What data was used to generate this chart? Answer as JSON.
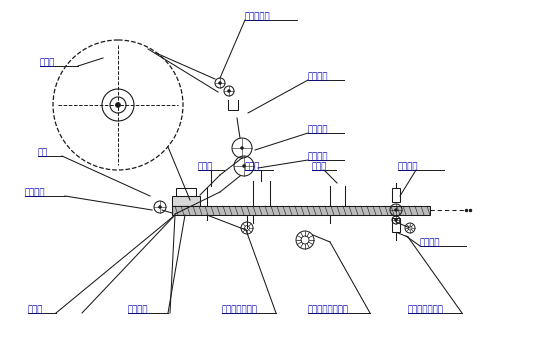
{
  "bg_color": "#ffffff",
  "line_color": "#1a1a1a",
  "label_color": "#0000bb",
  "labels": {
    "bao_mo_juan": "包膜卷",
    "bao_mo": "包膜",
    "da_ma_ji": "打码机滚筒",
    "dao_mo_dian": "导膜电眼",
    "zhu_dong_gun": "主动滚筒",
    "xiang_jiao_gun": "橡胶滚筒",
    "bo_gan_gun": "拨杆滚筒",
    "la_zhi_gu": "拉纸鼓",
    "jia_re_ban": "加热板",
    "ya_jin_lun": "压紧轮",
    "shang_heng_feng_dao": "上横封刀",
    "xia_heng_feng_dao": "下横封刀",
    "zhi_dai_qi": "制袋器",
    "bao_zhuang_chan_pin": "包装产品",
    "la_zhi_gu_shou_bing": "拉纸鼓开合手柄",
    "ya_jin_lun_tiao_su": "压紧轮速调节手轮",
    "ya_jin_lun_kai_he": "压紧轮开合手柄"
  },
  "figsize": [
    5.54,
    3.4
  ],
  "dpi": 100
}
